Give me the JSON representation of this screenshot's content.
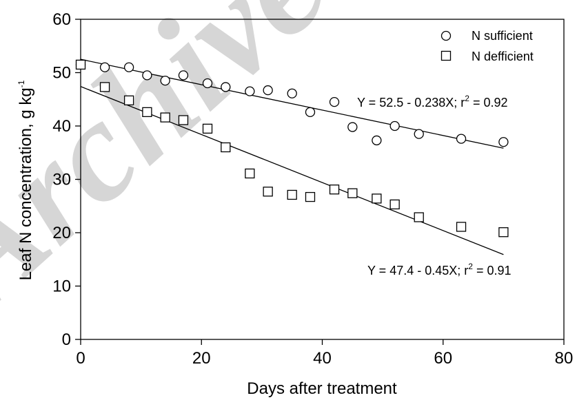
{
  "watermark": "Archive of SID",
  "chart_data": {
    "type": "scatter",
    "xlabel": "Days after treatment",
    "ylabel_main": "Leaf N concentration, g kg",
    "ylabel_sup": "-1",
    "xlim": [
      0,
      80
    ],
    "ylim": [
      0,
      60
    ],
    "xticks": [
      0,
      20,
      40,
      60,
      80
    ],
    "yticks": [
      0,
      10,
      20,
      30,
      40,
      50,
      60
    ],
    "legend_position": "top-right",
    "grid": false,
    "series": [
      {
        "name": "N sufficient",
        "marker": "circle",
        "x": [
          0,
          4,
          8,
          11,
          14,
          17,
          21,
          24,
          28,
          31,
          35,
          38,
          42,
          45,
          49,
          52,
          56,
          63,
          70
        ],
        "y": [
          51.5,
          51.0,
          51.0,
          49.5,
          48.5,
          49.5,
          48.0,
          47.3,
          46.5,
          46.7,
          46.1,
          42.6,
          44.5,
          39.8,
          37.3,
          40.0,
          38.5,
          37.6,
          37.0
        ],
        "fit": {
          "intercept": 52.5,
          "slope": -0.238,
          "x_range": [
            0,
            70
          ]
        },
        "equation": {
          "main": "Y = 52.5 - 0.238X;  r",
          "sup": "2",
          "tail": " = 0.92"
        }
      },
      {
        "name": "N defficient",
        "marker": "square",
        "x": [
          0,
          4,
          8,
          11,
          14,
          17,
          21,
          24,
          28,
          31,
          35,
          38,
          42,
          45,
          49,
          52,
          56,
          63,
          70
        ],
        "y": [
          51.5,
          47.3,
          44.8,
          42.6,
          41.6,
          41.1,
          39.5,
          36.0,
          31.1,
          27.7,
          27.1,
          26.7,
          28.1,
          27.4,
          26.4,
          25.3,
          22.9,
          21.1,
          20.1
        ],
        "fit": {
          "intercept": 47.4,
          "slope": -0.45,
          "x_range": [
            0,
            70
          ]
        },
        "equation": {
          "main": "Y = 47.4 - 0.45X;  r",
          "sup": "2",
          "tail": " = 0.91"
        }
      }
    ]
  }
}
